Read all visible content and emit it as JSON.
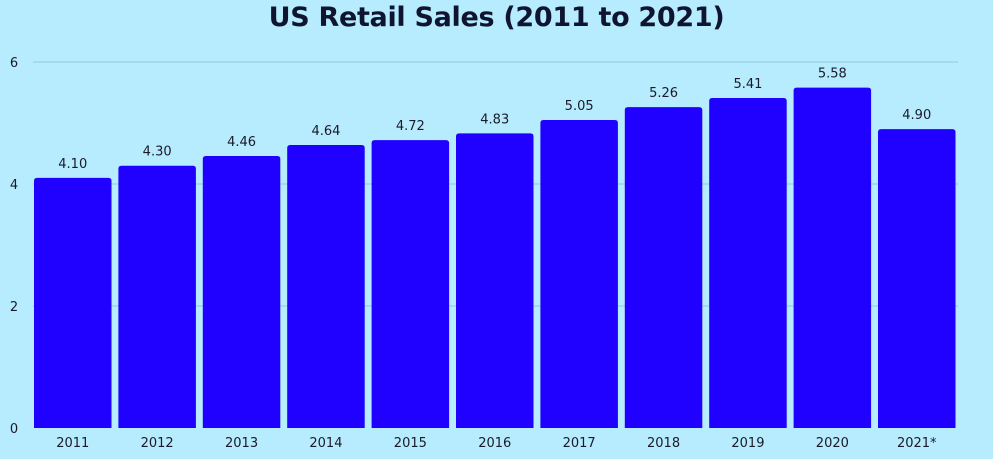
{
  "chart_data": {
    "type": "bar",
    "title": "US Retail Sales (2011 to 2021)",
    "xlabel": "",
    "ylabel": "",
    "categories": [
      "2011",
      "2012",
      "2013",
      "2014",
      "2015",
      "2016",
      "2017",
      "2018",
      "2019",
      "2020",
      "2021*"
    ],
    "values": [
      4.1,
      4.3,
      4.46,
      4.64,
      4.72,
      4.83,
      5.05,
      5.26,
      5.41,
      5.58,
      4.9
    ],
    "value_labels": [
      "4.10",
      "4.30",
      "4.46",
      "4.64",
      "4.72",
      "4.83",
      "5.05",
      "5.26",
      "5.41",
      "5.58",
      "4.90"
    ],
    "ylim": [
      0,
      6
    ],
    "yticks": [
      0,
      2,
      4,
      6
    ],
    "ytick_labels": [
      "0",
      "2",
      "4",
      "6"
    ],
    "grid": true,
    "legend": "none",
    "colors": {
      "background": "#b6ecfd",
      "bar": "#2000ff",
      "grid": "#8fc9de",
      "text": "#1a1a2a"
    }
  }
}
